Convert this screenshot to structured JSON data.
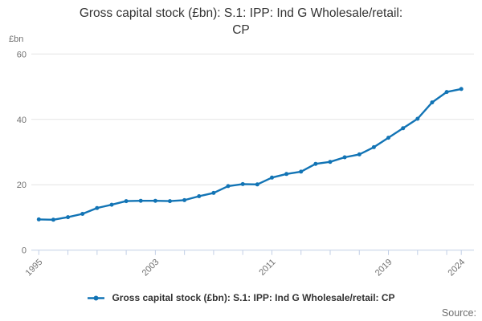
{
  "title": {
    "lines": [
      "Gross capital stock (£bn): S.1: IPP: Ind G Wholesale/retail:",
      "CP"
    ]
  },
  "y_axis_unit": "£bn",
  "source_label": "Source:",
  "legend": {
    "label": "Gross capital stock (£bn): S.1: IPP: Ind G Wholesale/retail: CP"
  },
  "colors": {
    "line": "#1274B5",
    "grid": "#E3E3E3",
    "axis": "#C2CFE6",
    "tick": "#C2CFE6",
    "tick_label": "#707070",
    "title": "#333333",
    "source": "#6E6E6E"
  },
  "chart_data": {
    "type": "line",
    "title": "Gross capital stock (£bn): S.1: IPP: Ind G Wholesale/retail: CP",
    "xlabel": "",
    "ylabel": "£bn",
    "x": [
      1995,
      1996,
      1997,
      1998,
      1999,
      2000,
      2001,
      2002,
      2003,
      2004,
      2005,
      2006,
      2007,
      2008,
      2009,
      2010,
      2011,
      2012,
      2013,
      2014,
      2015,
      2016,
      2017,
      2018,
      2019,
      2020,
      2021,
      2022,
      2023,
      2024
    ],
    "series": [
      {
        "name": "Gross capital stock (£bn): S.1: IPP: Ind G Wholesale/retail: CP",
        "values": [
          9.4,
          9.3,
          10.1,
          11.1,
          12.9,
          13.9,
          15.0,
          15.1,
          15.1,
          15.0,
          15.3,
          16.5,
          17.5,
          19.6,
          20.2,
          20.1,
          22.2,
          23.3,
          24.0,
          26.4,
          27.0,
          28.4,
          29.3,
          31.5,
          34.4,
          37.3,
          40.2,
          45.2,
          48.4,
          49.3
        ]
      }
    ],
    "ylim": [
      0,
      60
    ],
    "y_ticks": [
      0,
      20,
      40,
      60
    ],
    "x_tick_label_years": [
      1995,
      2003,
      2011,
      2019,
      2024
    ],
    "x_minor_tick_step": 2,
    "grid": "horizontal",
    "legend_position": "bottom",
    "marker": "circle"
  }
}
